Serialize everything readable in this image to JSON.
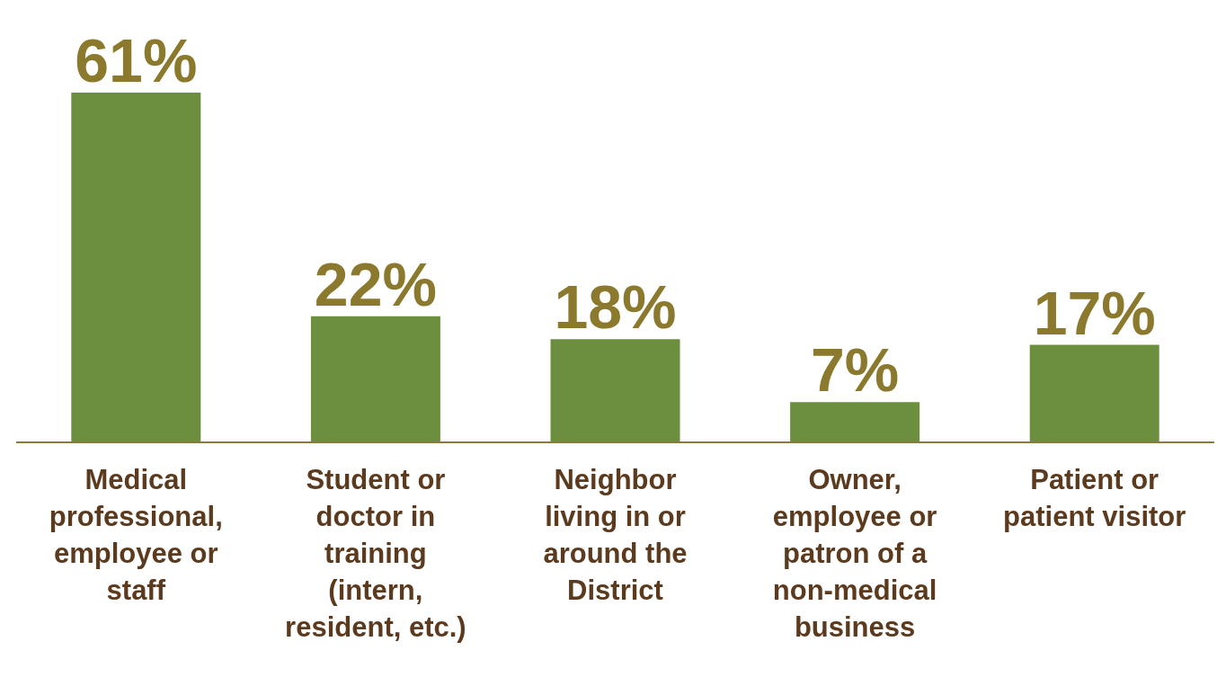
{
  "chart_data": {
    "type": "bar",
    "categories": [
      "Medical professional, employee or staff",
      "Student or doctor in training (intern, resident, etc.)",
      "Neighbor living in or around the District",
      "Owner, employee or patron of a non-medical business",
      "Patient or patient visitor"
    ],
    "values": [
      61,
      22,
      18,
      7,
      17
    ],
    "color": "#6b8f3f",
    "value_labels": [
      "61%",
      "22%",
      "18%",
      "7%",
      "17%"
    ],
    "grid": false,
    "legend": false
  }
}
